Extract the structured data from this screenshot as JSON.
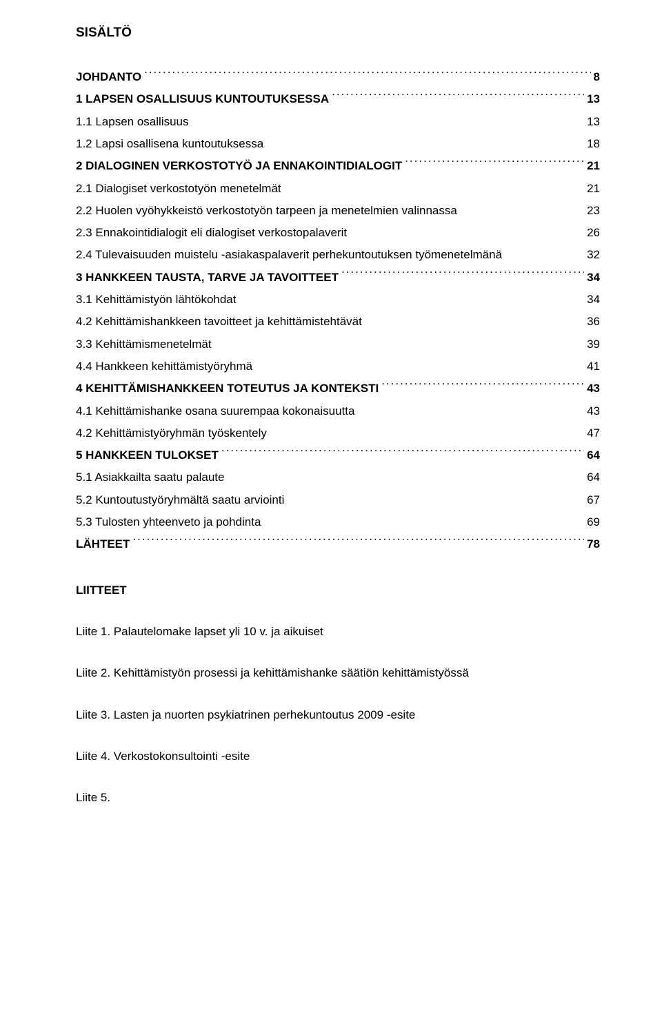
{
  "title": "SISÄLTÖ",
  "toc": [
    {
      "text": "JOHDANTO",
      "page": "8",
      "bold": true,
      "leader": true,
      "indent": 0
    },
    {
      "text": "1 LAPSEN OSALLISUUS KUNTOUTUKSESSA",
      "page": "13",
      "bold": true,
      "leader": true,
      "indent": 0
    },
    {
      "text": "1.1 Lapsen osallisuus",
      "page": "13",
      "bold": false,
      "leader": false,
      "indent": 0
    },
    {
      "text": "1.2 Lapsi osallisena kuntoutuksessa",
      "page": "18",
      "bold": false,
      "leader": false,
      "indent": 0
    },
    {
      "text": "2 DIALOGINEN VERKOSTOTYÖ JA ENNAKOINTIDIALOGIT",
      "page": "21",
      "bold": true,
      "leader": true,
      "indent": 0
    },
    {
      "text": "2.1 Dialogiset verkostotyön menetelmät",
      "page": "21",
      "bold": false,
      "leader": false,
      "indent": 0
    },
    {
      "text": "2.2 Huolen vyöhykkeistö verkostotyön tarpeen ja menetelmien valinnassa",
      "page": "23",
      "bold": false,
      "leader": false,
      "indent": 0
    },
    {
      "text": "2.3 Ennakointidialogit eli dialogiset verkostopalaverit",
      "page": "26",
      "bold": false,
      "leader": false,
      "indent": 0
    },
    {
      "text": "2.4 Tulevaisuuden muistelu -asiakaspalaverit perhekuntoutuksen työmenetelmänä",
      "page": "32",
      "bold": false,
      "leader": false,
      "indent": 0
    },
    {
      "text": "3 HANKKEEN TAUSTA, TARVE JA TAVOITTEET",
      "page": "34",
      "bold": true,
      "leader": true,
      "indent": 0
    },
    {
      "text": "3.1 Kehittämistyön lähtökohdat",
      "page": "34",
      "bold": false,
      "leader": false,
      "indent": 0
    },
    {
      "text": "4.2 Kehittämishankkeen tavoitteet ja kehittämistehtävät",
      "page": "36",
      "bold": false,
      "leader": false,
      "indent": 0
    },
    {
      "text": "3.3 Kehittämismenetelmät",
      "page": "39",
      "bold": false,
      "leader": false,
      "indent": 0
    },
    {
      "text": "4.4 Hankkeen kehittämistyöryhmä",
      "page": "41",
      "bold": false,
      "leader": false,
      "indent": 0
    },
    {
      "text": "4 KEHITTÄMISHANKKEEN TOTEUTUS JA KONTEKSTI",
      "page": "43",
      "bold": true,
      "leader": true,
      "indent": 0
    },
    {
      "text": "4.1 Kehittämishanke osana suurempaa kokonaisuutta",
      "page": "43",
      "bold": false,
      "leader": false,
      "indent": 0
    },
    {
      "text": "4.2 Kehittämistyöryhmän työskentely",
      "page": "47",
      "bold": false,
      "leader": false,
      "indent": 0
    },
    {
      "text": "5   HANKKEEN TULOKSET",
      "page": "64",
      "bold": true,
      "leader": true,
      "indent": 0
    },
    {
      "text": "5.1 Asiakkailta saatu palaute",
      "page": "64",
      "bold": false,
      "leader": false,
      "indent": 0
    },
    {
      "text": "5.2 Kuntoutustyöryhmältä saatu arviointi",
      "page": "67",
      "bold": false,
      "leader": false,
      "indent": 0
    },
    {
      "text": "5.3 Tulosten yhteenveto ja pohdinta",
      "page": "69",
      "bold": false,
      "leader": false,
      "indent": 0
    },
    {
      "text": "LÄHTEET",
      "page": "78",
      "bold": true,
      "leader": true,
      "indent": 0
    }
  ],
  "liitteet_title": "LIITTEET",
  "liitteet": [
    "Liite 1. Palautelomake lapset yli 10 v. ja aikuiset",
    "Liite 2. Kehittämistyön prosessi ja kehittämishanke säätiön kehittämistyössä",
    "Liite 3. Lasten ja nuorten psykiatrinen perhekuntoutus 2009 -esite",
    "Liite 4. Verkostokonsultointi -esite",
    "Liite 5."
  ]
}
